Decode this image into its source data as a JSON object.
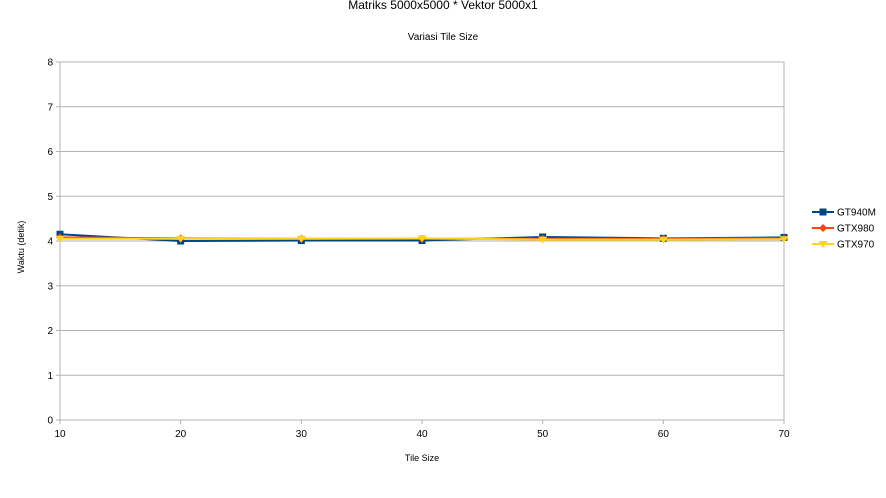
{
  "chart_data": {
    "type": "line",
    "title": "Matriks 5000x5000 * Vektor 5000x1",
    "subtitle": "Variasi Tile Size",
    "xlabel": "Tile Size",
    "ylabel": "Waktu (detik)",
    "x": [
      10,
      20,
      30,
      40,
      50,
      60,
      70
    ],
    "xlim": [
      10,
      70
    ],
    "ylim": [
      0,
      8
    ],
    "yticks": [
      0,
      1,
      2,
      3,
      4,
      5,
      6,
      7,
      8
    ],
    "grid": true,
    "legend_position": "right",
    "series": [
      {
        "name": "GT940M",
        "color": "#004586",
        "marker": "square",
        "values": [
          4.15,
          4.0,
          4.01,
          4.01,
          4.09,
          4.06,
          4.08
        ]
      },
      {
        "name": "GTX980",
        "color": "#ff420e",
        "marker": "diamond",
        "values": [
          4.08,
          4.06,
          4.05,
          4.05,
          4.05,
          4.05,
          4.06
        ]
      },
      {
        "name": "GTX970",
        "color": "#ffd320",
        "marker": "triangle",
        "values": [
          4.05,
          4.05,
          4.05,
          4.06,
          4.03,
          4.03,
          4.04
        ]
      }
    ]
  }
}
